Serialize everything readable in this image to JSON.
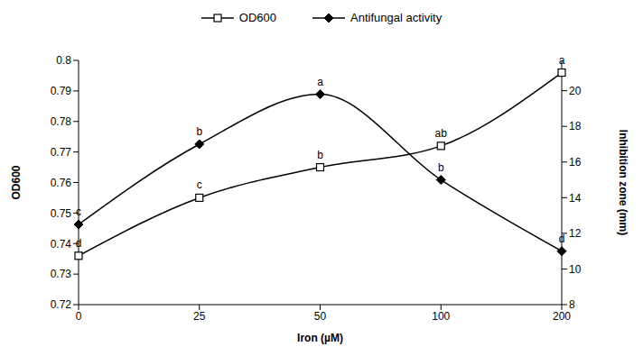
{
  "chart_data": {
    "type": "line",
    "x_label": "Iron (µM)",
    "y_label": "OD600",
    "y2_label": "Inhibition zone (mm)",
    "categories": [
      "0",
      "25",
      "50",
      "100",
      "200"
    ],
    "ylim": [
      0.72,
      0.8
    ],
    "yticks": [
      0.72,
      0.73,
      0.74,
      0.75,
      0.76,
      0.77,
      0.78,
      0.79,
      0.8
    ],
    "y2lim": [
      8,
      21.7
    ],
    "y2ticks": [
      8,
      10,
      12,
      14,
      16,
      18,
      20
    ],
    "grid": false,
    "legend": "top",
    "series": [
      {
        "name": "OD600",
        "color": "#000000",
        "marker": "open_square",
        "line_style": "solid",
        "axis": "y",
        "values": [
          0.736,
          0.755,
          0.765,
          0.772,
          0.796
        ],
        "annotations": [
          "d",
          "c",
          "b",
          "ab",
          "a"
        ]
      },
      {
        "name": "Antifungal activity",
        "color": "#000000",
        "marker": "diamond",
        "line_style": "solid",
        "axis": "y2",
        "values": [
          12.5,
          17.0,
          19.8,
          15.0,
          11.0
        ],
        "annotations": [
          "c",
          "b",
          "a",
          "b",
          "d"
        ]
      }
    ]
  }
}
